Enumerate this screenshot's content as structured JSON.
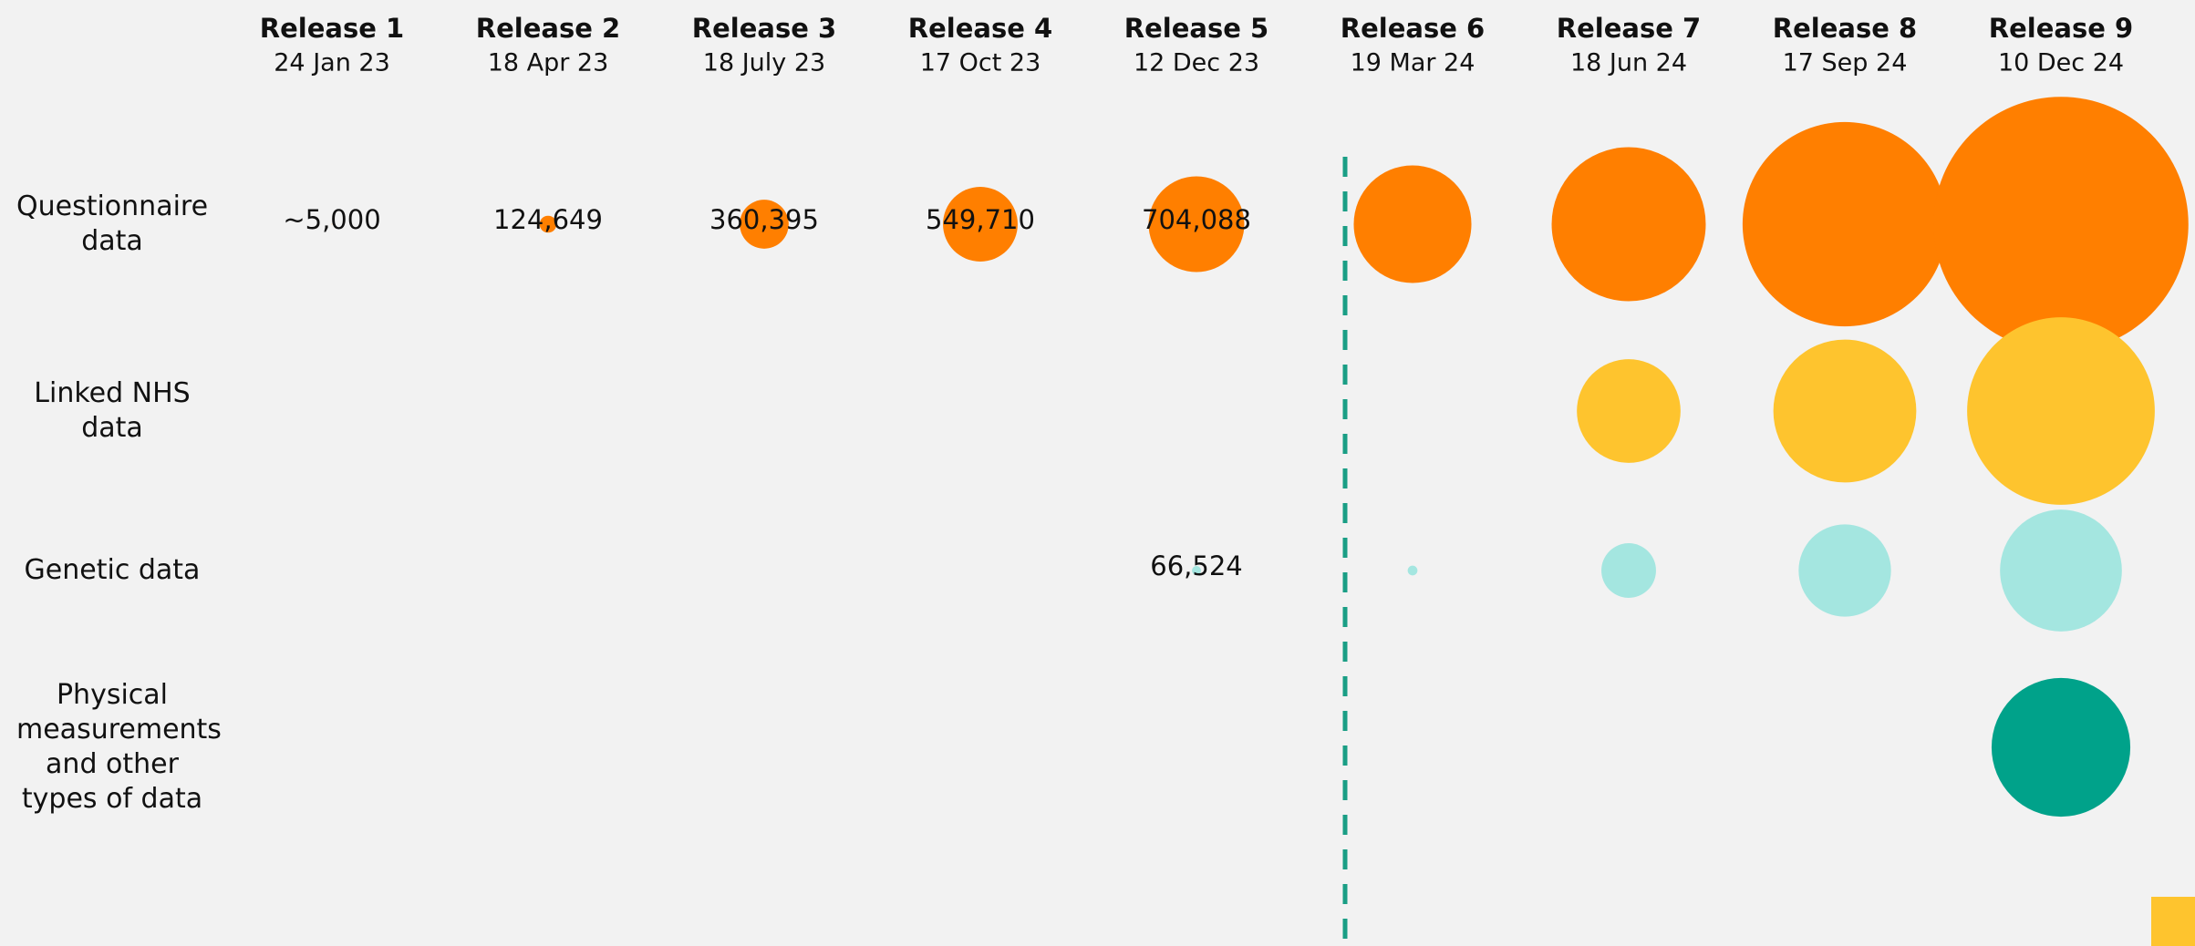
{
  "chart_data": {
    "type": "bubble",
    "categories": [
      "Release 1",
      "Release 2",
      "Release 3",
      "Release 4",
      "Release 5",
      "Release 6",
      "Release 7",
      "Release 8",
      "Release 9"
    ],
    "dates": [
      "24 Jan 23",
      "18 Apr 23",
      "18 July 23",
      "17 Oct 23",
      "12 Dec 23",
      "19 Mar 24",
      "18 Jun 24",
      "17 Sep 24",
      "10 Dec 24"
    ],
    "series": [
      {
        "name": "Questionnaire data",
        "color": "#ff7f00",
        "values": [
          5000,
          124649,
          360395,
          549710,
          704088,
          866000,
          1134000,
          1505000,
          1876000
        ],
        "value_labels": [
          "~5,000",
          "124,649",
          "360,395",
          "549,710",
          "704,088",
          null,
          null,
          null,
          null
        ]
      },
      {
        "name": "Linked NHS data",
        "color": "#fec42e",
        "values": [
          null,
          null,
          null,
          null,
          null,
          null,
          763000,
          1052000,
          1381000
        ]
      },
      {
        "name": "Genetic data",
        "color": "#a4e6e0",
        "values": [
          null,
          null,
          null,
          null,
          66524,
          72000,
          402000,
          680000,
          897000
        ],
        "value_labels": [
          null,
          null,
          null,
          null,
          "66,524",
          null,
          null,
          null,
          null
        ]
      },
      {
        "name": "Physical measurements and other types of data",
        "color": "#00a28a",
        "values": [
          null,
          null,
          null,
          null,
          null,
          null,
          null,
          null,
          1021000
        ]
      }
    ]
  }
}
